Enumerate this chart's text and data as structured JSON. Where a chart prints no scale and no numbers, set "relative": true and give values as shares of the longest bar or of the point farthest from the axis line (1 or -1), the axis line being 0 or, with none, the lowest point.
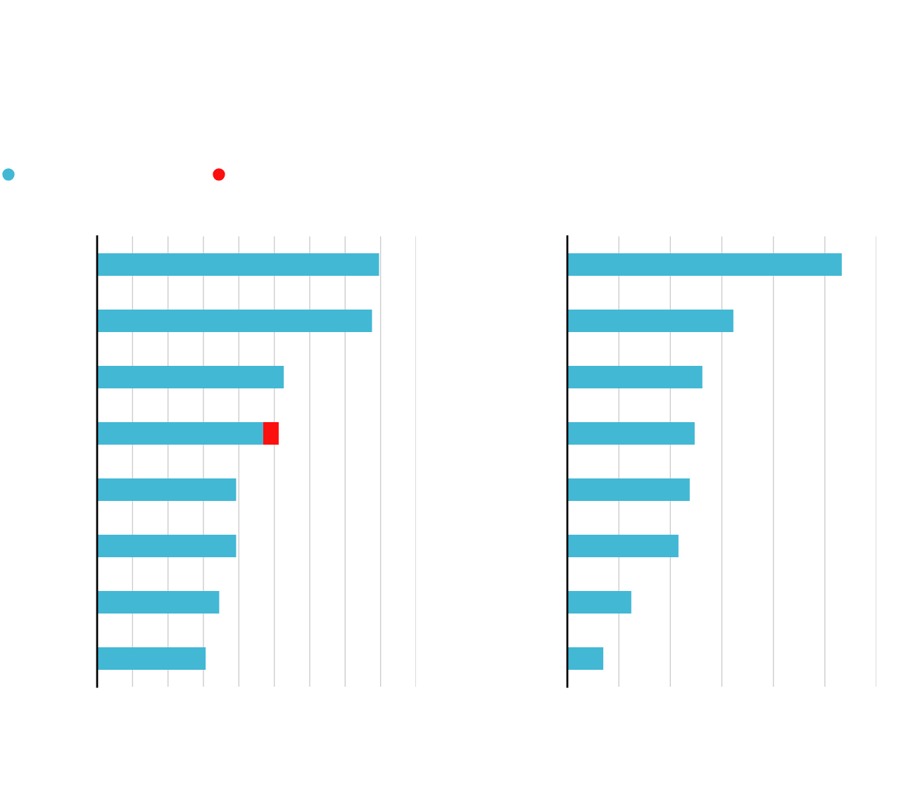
{
  "chart_data": [
    {
      "type": "bar",
      "orientation": "horizontal",
      "stacked": true,
      "relative": true,
      "grid": "x",
      "categories": [
        null,
        null,
        null,
        null,
        null,
        null,
        null,
        null
      ],
      "series": [
        {
          "color": "#42b8d5",
          "values": [
            1,
            0.975,
            0.662,
            0.589,
            0.493,
            0.493,
            0.433,
            0.385
          ]
        },
        {
          "color": "#fc0f0f",
          "values": [
            null,
            null,
            null,
            0.055,
            null,
            null,
            null,
            null
          ]
        }
      ]
    },
    {
      "type": "bar",
      "orientation": "horizontal",
      "relative": true,
      "grid": "x",
      "categories": [
        null,
        null,
        null,
        null,
        null,
        null,
        null,
        null
      ],
      "color": "#42b8d5",
      "values": [
        1,
        0.605,
        0.492,
        0.464,
        0.446,
        0.405,
        0.233,
        0.131
      ]
    }
  ]
}
